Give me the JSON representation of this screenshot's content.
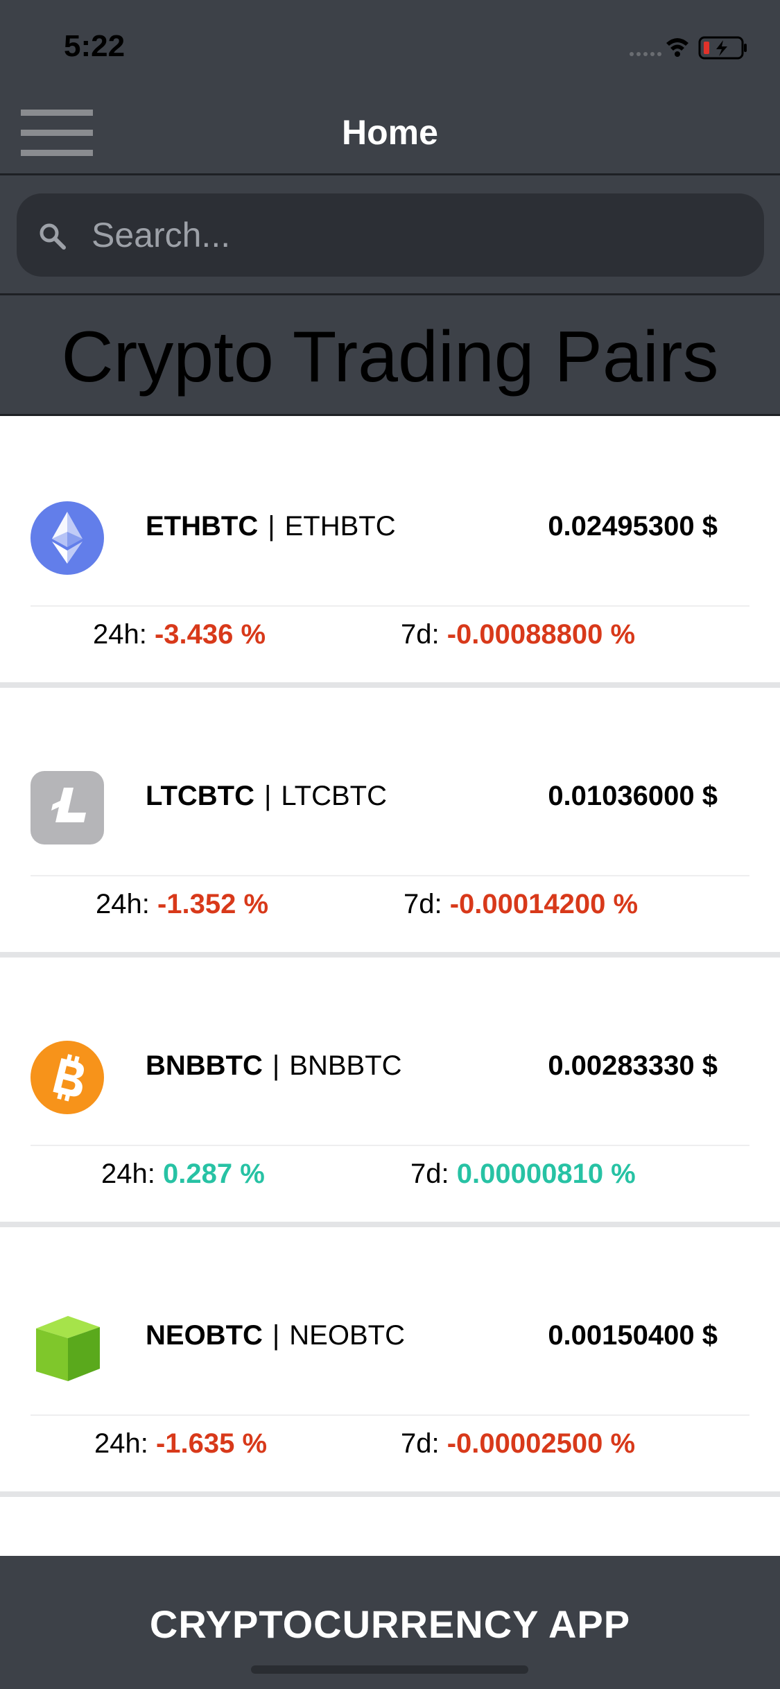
{
  "status_bar": {
    "time": "5:22"
  },
  "header": {
    "title": "Home"
  },
  "search": {
    "placeholder": "Search..."
  },
  "page_title": "Crypto Trading Pairs",
  "pairs": [
    {
      "symbol": "ETHBTC",
      "name": "ETHBTC",
      "price": "0.02495300 $",
      "h24_label": "24h:",
      "h24": "-3.436 %",
      "h24_trend": "negative",
      "d7_label": "7d:",
      "d7": "-0.00088800 %",
      "d7_trend": "negative",
      "icon": "ethereum-icon"
    },
    {
      "symbol": "LTCBTC",
      "name": "LTCBTC",
      "price": "0.01036000 $",
      "h24_label": "24h:",
      "h24": "-1.352 %",
      "h24_trend": "negative",
      "d7_label": "7d:",
      "d7": "-0.00014200 %",
      "d7_trend": "negative",
      "icon": "litecoin-icon"
    },
    {
      "symbol": "BNBBTC",
      "name": "BNBBTC",
      "price": "0.00283330 $",
      "h24_label": "24h:",
      "h24": "0.287 %",
      "h24_trend": "positive",
      "d7_label": "7d:",
      "d7": "0.00000810 %",
      "d7_trend": "positive",
      "icon": "bitcoin-icon"
    },
    {
      "symbol": "NEOBTC",
      "name": "NEOBTC",
      "price": "0.00150400 $",
      "h24_label": "24h:",
      "h24": "-1.635 %",
      "h24_trend": "negative",
      "d7_label": "7d:",
      "d7": "-0.00002500 %",
      "d7_trend": "negative",
      "icon": "neo-icon"
    }
  ],
  "separator": "|",
  "footer": {
    "title": "CRYPTOCURRENCY APP"
  },
  "colors": {
    "bar": "#3d4148",
    "negative": "#d8391a",
    "positive": "#27c2a4",
    "eth": "#627eea",
    "ltc": "#b5b5b8",
    "btc": "#f7931a",
    "neo": "#7fc72b"
  }
}
